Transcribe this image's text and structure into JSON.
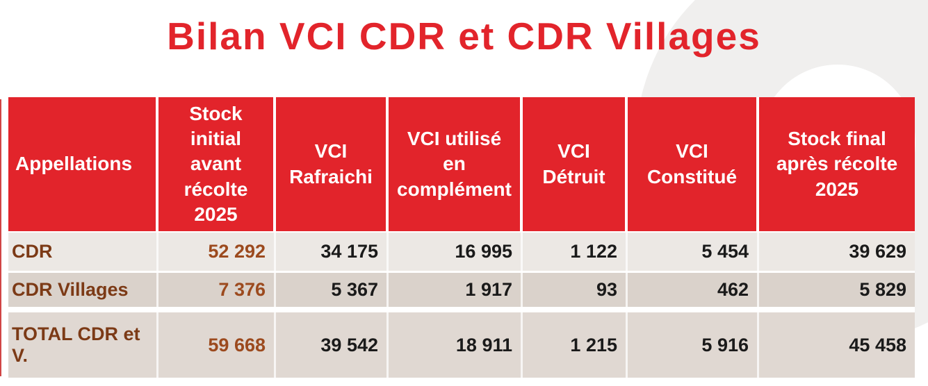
{
  "title": "Bilan VCI CDR et CDR Villages",
  "colors": {
    "accent_red": "#e2242b",
    "brown_label": "#7c3a16",
    "brown_value": "#9c4a1e",
    "row_light_bg": "#ece8e4",
    "row_medium_bg": "#dad2cb",
    "row_total_bg": "#e0d8d2",
    "watermark_gray": "#f0efee",
    "header_text": "#ffffff",
    "value_text": "#1a1a1a"
  },
  "table": {
    "columns": [
      "Appellations",
      "Stock\ninitial\navant\nrécolte\n2025",
      "VCI\nRafraichi",
      "VCI utilisé\nen\ncomplément",
      "VCI\nDétruit",
      "VCI\nConstitué",
      "Stock final\naprès récolte\n2025"
    ],
    "rows": [
      {
        "label": "CDR",
        "values": [
          "52 292",
          "34 175",
          "16 995",
          "1 122",
          "5 454",
          "39 629"
        ]
      },
      {
        "label": "CDR Villages",
        "values": [
          "7 376",
          "5 367",
          "1 917",
          "93",
          "462",
          "5 829"
        ]
      },
      {
        "label": "TOTAL CDR et V.",
        "values": [
          "59 668",
          "39 542",
          "18 911",
          "1 215",
          "5 916",
          "45 458"
        ]
      }
    ]
  }
}
